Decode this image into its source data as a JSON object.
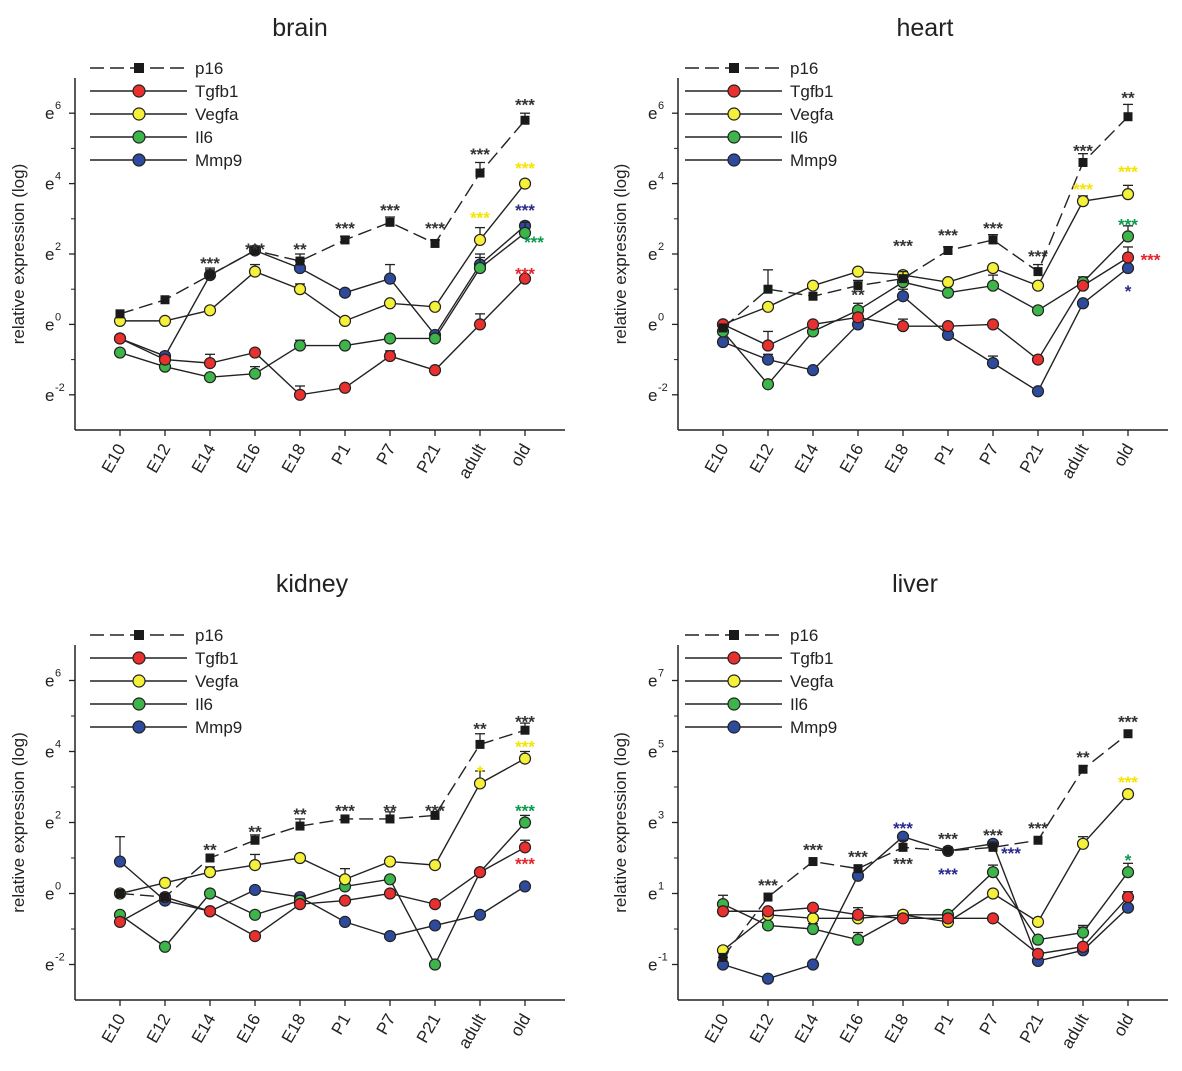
{
  "ylabel": "relative expression (log)",
  "legend_order": [
    "p16",
    "Tgfb1",
    "Vegfa",
    "Il6",
    "Mmp9"
  ],
  "colors": {
    "p16": "#1a1a1a",
    "Tgfb1": "#e8312f",
    "Vegfa": "#f5f03a",
    "Il6": "#3db54a",
    "Mmp9": "#2e4a9c",
    "star_black": "#333333",
    "star_yellow": "#f5e400",
    "star_green": "#0a9a4a",
    "star_red": "#e3242b",
    "star_navy": "#2a2a8c"
  },
  "chart_data": [
    {
      "type": "line",
      "title": "brain",
      "xlabel": "",
      "ylabel": "relative expression (log)",
      "categories": [
        "E10",
        "E12",
        "E14",
        "E16",
        "E18",
        "P1",
        "P7",
        "P21",
        "adult",
        "old"
      ],
      "ylim": [
        -3,
        7
      ],
      "yticks": [
        -2,
        0,
        2,
        4,
        6
      ],
      "ytick_labels": [
        "e",
        "e",
        "e",
        "e",
        "e"
      ],
      "ytick_exponents": [
        "-2",
        "0",
        "2",
        "4",
        "6"
      ],
      "series": [
        {
          "name": "p16",
          "values": [
            0.3,
            0.7,
            1.4,
            2.1,
            1.8,
            2.4,
            2.9,
            2.3,
            4.3,
            5.8
          ],
          "errors": [
            0,
            0,
            0.15,
            0.1,
            0.2,
            0.1,
            0.15,
            0.1,
            0.3,
            0.2
          ]
        },
        {
          "name": "Tgfb1",
          "values": [
            -0.4,
            -1.0,
            -1.1,
            -0.8,
            -2.0,
            -1.8,
            -0.9,
            -1.3,
            0.0,
            1.3
          ],
          "errors": [
            0,
            0,
            0.25,
            0,
            0.25,
            0,
            0.15,
            0,
            0.3,
            0
          ]
        },
        {
          "name": "Vegfa",
          "values": [
            0.1,
            0.1,
            0.4,
            1.5,
            1.0,
            0.1,
            0.6,
            0.5,
            2.4,
            4.0
          ],
          "errors": [
            0,
            0,
            0,
            0.2,
            0.15,
            0,
            0,
            0,
            0.35,
            0
          ]
        },
        {
          "name": "Il6",
          "values": [
            -0.8,
            -1.2,
            -1.5,
            -1.4,
            -0.6,
            -0.6,
            -0.4,
            -0.4,
            1.6,
            2.6
          ],
          "errors": [
            0,
            0,
            0,
            0.2,
            0.15,
            0,
            0,
            0,
            0.3,
            0.3
          ]
        },
        {
          "name": "Mmp9",
          "values": [
            -0.4,
            -0.9,
            1.4,
            2.1,
            1.6,
            0.9,
            1.3,
            -0.3,
            1.7,
            2.8
          ],
          "errors": [
            0,
            0.1,
            0.2,
            0,
            0.2,
            0,
            0.4,
            0,
            0.3,
            0
          ]
        }
      ],
      "annotations": [
        {
          "text": "***",
          "x": "E14",
          "y": 1.8,
          "color": "star_black"
        },
        {
          "text": "***",
          "x": "E16",
          "y": 2.2,
          "color": "star_black"
        },
        {
          "text": "**",
          "x": "E18",
          "y": 2.2,
          "color": "star_black"
        },
        {
          "text": "***",
          "x": "P1",
          "y": 2.8,
          "color": "star_black"
        },
        {
          "text": "***",
          "x": "P7",
          "y": 3.3,
          "color": "star_black"
        },
        {
          "text": "***",
          "x": "P21",
          "y": 2.8,
          "color": "star_black"
        },
        {
          "text": "***",
          "x": "adult",
          "y": 4.9,
          "color": "star_black"
        },
        {
          "text": "***",
          "x": "old",
          "y": 6.3,
          "color": "star_black"
        },
        {
          "text": "***",
          "x": "adult",
          "y": 3.1,
          "color": "star_yellow"
        },
        {
          "text": "***",
          "x": "old",
          "y": 4.5,
          "color": "star_yellow"
        },
        {
          "text": "***",
          "x": "old",
          "y": 3.3,
          "color": "star_navy"
        },
        {
          "text": "***",
          "x": "old",
          "y": 2.4,
          "color": "star_green",
          "dx": 0.2
        },
        {
          "text": "***",
          "x": "old",
          "y": 1.5,
          "color": "star_red"
        }
      ]
    },
    {
      "type": "line",
      "title": "heart",
      "xlabel": "",
      "ylabel": "relative expression (log)",
      "categories": [
        "E10",
        "E12",
        "E14",
        "E16",
        "E18",
        "P1",
        "P7",
        "P21",
        "adult",
        "old"
      ],
      "ylim": [
        -3,
        7
      ],
      "yticks": [
        -2,
        0,
        2,
        4,
        6
      ],
      "ytick_labels": [
        "e",
        "e",
        "e",
        "e",
        "e"
      ],
      "ytick_exponents": [
        "-2",
        "0",
        "2",
        "4",
        "6"
      ],
      "series": [
        {
          "name": "p16",
          "values": [
            -0.1,
            1.0,
            0.8,
            1.1,
            1.3,
            2.1,
            2.4,
            1.5,
            4.6,
            5.9
          ],
          "errors": [
            0,
            0.55,
            0,
            0.15,
            0.2,
            0.1,
            0.15,
            0.2,
            0.25,
            0.35
          ]
        },
        {
          "name": "Tgfb1",
          "values": [
            0.0,
            -0.6,
            0.0,
            0.2,
            -0.05,
            -0.05,
            0.0,
            -1.0,
            1.1,
            1.9
          ],
          "errors": [
            0,
            0.4,
            0,
            0,
            0.2,
            0,
            0,
            0,
            0,
            0.3
          ]
        },
        {
          "name": "Vegfa",
          "values": [
            0.0,
            0.5,
            1.1,
            1.5,
            1.4,
            1.2,
            1.6,
            1.1,
            3.5,
            3.7
          ],
          "errors": [
            0,
            0,
            0,
            0,
            0,
            0,
            0,
            0,
            0.15,
            0.25
          ]
        },
        {
          "name": "Il6",
          "values": [
            -0.2,
            -1.7,
            -0.2,
            0.4,
            1.2,
            0.9,
            1.1,
            0.4,
            1.2,
            2.5
          ],
          "errors": [
            0,
            0,
            0,
            0.2,
            0.3,
            0,
            0.3,
            0,
            0.15,
            0.3
          ]
        },
        {
          "name": "Mmp9",
          "values": [
            -0.5,
            -1.0,
            -1.3,
            0.0,
            0.8,
            -0.3,
            -1.1,
            -1.9,
            0.6,
            1.6
          ],
          "errors": [
            0,
            0.15,
            0,
            0,
            0.2,
            0,
            0.2,
            0,
            0,
            0
          ]
        }
      ],
      "annotations": [
        {
          "text": "**",
          "x": "E16",
          "y": 0.9,
          "color": "star_black"
        },
        {
          "text": "***",
          "x": "E18",
          "y": 2.3,
          "color": "star_black"
        },
        {
          "text": "***",
          "x": "P1",
          "y": 2.6,
          "color": "star_black"
        },
        {
          "text": "***",
          "x": "P7",
          "y": 2.8,
          "color": "star_black"
        },
        {
          "text": "***",
          "x": "P21",
          "y": 2.0,
          "color": "star_black"
        },
        {
          "text": "***",
          "x": "adult",
          "y": 5.0,
          "color": "star_black"
        },
        {
          "text": "**",
          "x": "old",
          "y": 6.5,
          "color": "star_black"
        },
        {
          "text": "***",
          "x": "adult",
          "y": 3.9,
          "color": "star_yellow"
        },
        {
          "text": "***",
          "x": "old",
          "y": 4.4,
          "color": "star_yellow"
        },
        {
          "text": "***",
          "x": "old",
          "y": 2.9,
          "color": "star_green"
        },
        {
          "text": "***",
          "x": "old",
          "y": 1.9,
          "color": "star_red",
          "dx": 0.5
        },
        {
          "text": "*",
          "x": "old",
          "y": 1.0,
          "color": "star_navy"
        }
      ]
    },
    {
      "type": "line",
      "title": "kidney",
      "xlabel": "",
      "ylabel": "relative expression (log)",
      "categories": [
        "E10",
        "E12",
        "E14",
        "E16",
        "E18",
        "P1",
        "P7",
        "P21",
        "adult",
        "old"
      ],
      "ylim": [
        -3,
        7
      ],
      "yticks": [
        -2,
        0,
        2,
        4,
        6
      ],
      "ytick_labels": [
        "e",
        "e",
        "e",
        "e",
        "e"
      ],
      "ytick_exponents": [
        "-2",
        "0",
        "2",
        "4",
        "6"
      ],
      "series": [
        {
          "name": "p16",
          "values": [
            0.0,
            -0.1,
            1.0,
            1.5,
            1.9,
            2.1,
            2.1,
            2.2,
            4.2,
            4.6
          ],
          "errors": [
            0,
            0,
            0,
            0.15,
            0.2,
            0,
            0.2,
            0,
            0.3,
            0.2
          ]
        },
        {
          "name": "Tgfb1",
          "values": [
            -0.8,
            -0.1,
            -0.5,
            -1.2,
            -0.3,
            -0.2,
            0.0,
            -0.3,
            0.6,
            1.3
          ],
          "errors": [
            0,
            0,
            0,
            0,
            0,
            0,
            0,
            0,
            0,
            0.2
          ]
        },
        {
          "name": "Vegfa",
          "values": [
            0.0,
            0.3,
            0.6,
            0.8,
            1.0,
            0.4,
            0.9,
            0.8,
            3.1,
            3.8
          ],
          "errors": [
            0,
            0,
            0.15,
            0.3,
            0,
            0.3,
            0,
            0,
            0.35,
            0.2
          ]
        },
        {
          "name": "Il6",
          "values": [
            -0.6,
            -1.5,
            0.0,
            -0.6,
            -0.2,
            0.2,
            0.4,
            -2.0,
            0.6,
            2.0
          ],
          "errors": [
            0,
            0,
            0,
            0,
            0.15,
            0,
            0,
            0,
            0,
            0.2
          ]
        },
        {
          "name": "Mmp9",
          "values": [
            0.9,
            -0.2,
            -0.5,
            0.1,
            -0.1,
            -0.8,
            -1.2,
            -0.9,
            -0.6,
            0.2
          ],
          "errors": [
            0.7,
            0,
            0,
            0,
            0.1,
            0,
            0,
            0,
            0,
            0
          ]
        }
      ],
      "annotations": [
        {
          "text": "**",
          "x": "E14",
          "y": 1.3,
          "color": "star_black"
        },
        {
          "text": "**",
          "x": "E16",
          "y": 1.8,
          "color": "star_black"
        },
        {
          "text": "**",
          "x": "E18",
          "y": 2.3,
          "color": "star_black"
        },
        {
          "text": "***",
          "x": "P1",
          "y": 2.4,
          "color": "star_black"
        },
        {
          "text": "**",
          "x": "P7",
          "y": 2.4,
          "color": "star_black"
        },
        {
          "text": "***",
          "x": "P21",
          "y": 2.4,
          "color": "star_black"
        },
        {
          "text": "**",
          "x": "adult",
          "y": 4.7,
          "color": "star_black"
        },
        {
          "text": "***",
          "x": "old",
          "y": 4.9,
          "color": "star_black"
        },
        {
          "text": "*",
          "x": "adult",
          "y": 3.5,
          "color": "star_yellow"
        },
        {
          "text": "***",
          "x": "old",
          "y": 4.2,
          "color": "star_yellow"
        },
        {
          "text": "***",
          "x": "old",
          "y": 2.4,
          "color": "star_green"
        },
        {
          "text": "***",
          "x": "old",
          "y": 0.9,
          "color": "star_red"
        }
      ]
    },
    {
      "type": "line",
      "title": "liver",
      "xlabel": "",
      "ylabel": "relative expression (log)",
      "categories": [
        "E10",
        "E12",
        "E14",
        "E16",
        "E18",
        "P1",
        "P7",
        "P21",
        "adult",
        "old"
      ],
      "ylim": [
        -2,
        8
      ],
      "yticks": [
        -1,
        1,
        3,
        5,
        7
      ],
      "ytick_labels": [
        "e",
        "e",
        "e",
        "e",
        "e"
      ],
      "ytick_exponents": [
        "-1",
        "1",
        "3",
        "5",
        "7"
      ],
      "series": [
        {
          "name": "p16",
          "values": [
            -0.8,
            0.9,
            1.9,
            1.7,
            2.3,
            2.2,
            2.3,
            2.5,
            4.5,
            5.5
          ],
          "errors": [
            0,
            0,
            0,
            0,
            0.2,
            0.1,
            0.15,
            0,
            0,
            0
          ]
        },
        {
          "name": "Tgfb1",
          "values": [
            0.5,
            0.5,
            0.6,
            0.4,
            0.3,
            0.3,
            0.3,
            -0.7,
            -0.5,
            0.9
          ],
          "errors": [
            0,
            0,
            0,
            0.2,
            0,
            0,
            0,
            0,
            0,
            0.15
          ]
        },
        {
          "name": "Vegfa",
          "values": [
            -0.6,
            0.4,
            0.3,
            0.3,
            0.4,
            0.2,
            1.0,
            0.2,
            2.4,
            3.8
          ],
          "errors": [
            0,
            0,
            0.2,
            0.2,
            0,
            0,
            0,
            0,
            0.2,
            0
          ]
        },
        {
          "name": "Il6",
          "values": [
            0.7,
            0.1,
            0.0,
            -0.3,
            0.4,
            0.4,
            1.6,
            -0.3,
            -0.1,
            1.6
          ],
          "errors": [
            0.25,
            0,
            0.15,
            0.2,
            0.1,
            0.1,
            0.2,
            0,
            0.2,
            0.25
          ]
        },
        {
          "name": "Mmp9",
          "values": [
            -1.0,
            -1.4,
            -1.0,
            1.5,
            2.6,
            2.2,
            2.4,
            -0.9,
            -0.6,
            0.6
          ],
          "errors": [
            0.2,
            0,
            0,
            0,
            0,
            0,
            0,
            0,
            0.65,
            0
          ]
        }
      ],
      "annotations": [
        {
          "text": "***",
          "x": "E12",
          "y": 1.3,
          "color": "star_black"
        },
        {
          "text": "***",
          "x": "E14",
          "y": 2.3,
          "color": "star_black"
        },
        {
          "text": "***",
          "x": "E16",
          "y": 2.1,
          "color": "star_black"
        },
        {
          "text": "***",
          "x": "E18",
          "y": 2.9,
          "color": "star_navy"
        },
        {
          "text": "***",
          "x": "E18",
          "y": 1.9,
          "color": "star_black"
        },
        {
          "text": "***",
          "x": "P1",
          "y": 2.6,
          "color": "star_black"
        },
        {
          "text": "***",
          "x": "P1",
          "y": 1.6,
          "color": "star_navy"
        },
        {
          "text": "***",
          "x": "P7",
          "y": 2.7,
          "color": "star_black"
        },
        {
          "text": "***",
          "x": "P7",
          "y": 2.2,
          "color": "star_navy",
          "dx": 0.4
        },
        {
          "text": "***",
          "x": "P21",
          "y": 2.9,
          "color": "star_black"
        },
        {
          "text": "**",
          "x": "adult",
          "y": 4.9,
          "color": "star_black"
        },
        {
          "text": "***",
          "x": "old",
          "y": 5.9,
          "color": "star_black"
        },
        {
          "text": "***",
          "x": "old",
          "y": 4.2,
          "color": "star_yellow"
        },
        {
          "text": "*",
          "x": "old",
          "y": 2.0,
          "color": "star_green"
        }
      ]
    }
  ]
}
